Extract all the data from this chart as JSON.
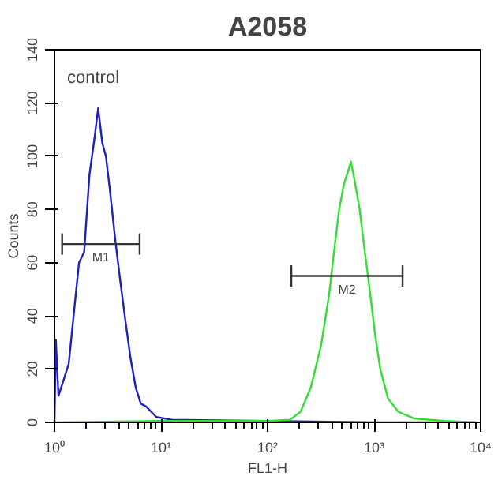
{
  "chart_data": {
    "type": "line",
    "title": "A2058",
    "xlabel": "FL1-H",
    "ylabel": "Counts",
    "log": "x",
    "grid": false,
    "legend": false,
    "xlim": [
      1,
      10000
    ],
    "xticks": [
      {
        "value": 1,
        "label": "10⁰"
      },
      {
        "value": 10,
        "label": "10¹"
      },
      {
        "value": 100,
        "label": "10²"
      },
      {
        "value": 1000,
        "label": "10³"
      },
      {
        "value": 10000,
        "label": "10⁴"
      }
    ],
    "ylim": [
      0,
      140
    ],
    "yticks": [
      0,
      20,
      40,
      60,
      80,
      100,
      120,
      140
    ],
    "series": [
      {
        "color": "#1f1fbf",
        "x": [
          1.0,
          1.03,
          1.09,
          1.22,
          1.36,
          1.52,
          1.7,
          1.9,
          2.13,
          2.38,
          2.57,
          2.81,
          3.04,
          3.32,
          3.71,
          4.15,
          4.64,
          5.18,
          5.8,
          6.47,
          7.23,
          9.04,
          12.6,
          100,
          1000,
          9000
        ],
        "values": [
          0,
          31,
          10,
          16,
          22,
          41,
          60,
          64,
          93,
          107,
          118,
          105,
          100,
          87,
          69,
          53,
          38,
          24,
          13,
          7,
          6,
          2,
          1,
          0.5,
          0,
          0
        ]
      },
      {
        "color": "#33dd33",
        "x": [
          1.0,
          10,
          100,
          163,
          204,
          254,
          318,
          375,
          420,
          469,
          524,
          566,
          605,
          655,
          731,
          818,
          914,
          1021,
          1142,
          1349,
          1686,
          2352,
          4585,
          9000
        ],
        "values": [
          0,
          0.5,
          0.5,
          1,
          4,
          13,
          29,
          47,
          64,
          80,
          90,
          94,
          98,
          91,
          80,
          64,
          49,
          33,
          20,
          9,
          4,
          1.5,
          0.5,
          0
        ]
      },
      {
        "name": "M1",
        "color": "#333333",
        "x": [
          1.18,
          6.3
        ],
        "values": [
          67,
          67
        ],
        "errors": [
          4,
          4
        ]
      },
      {
        "name": "M2",
        "color": "#333333",
        "x": [
          167,
          1850
        ],
        "values": [
          55,
          55
        ],
        "errors": [
          4,
          4
        ]
      }
    ],
    "annotations": [
      "control"
    ]
  }
}
